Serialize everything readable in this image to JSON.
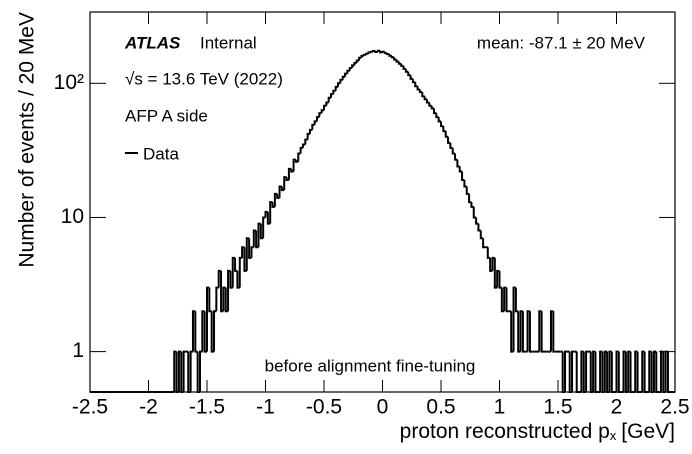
{
  "chart_data": {
    "type": "histogram",
    "experiment": "ATLAS",
    "status": "Internal",
    "energy": "√s = 13.6 TeV (2022)",
    "subtitle": "AFP A side",
    "annotation": "mean: -87.1 ± 20 MeV",
    "note": "before alignment fine-tuning",
    "x_label": {
      "text": "proton reconstructed p",
      "sub": "x",
      "unit": "[GeV]"
    },
    "y_label": "Number of events / 20 MeV",
    "log_y": true,
    "legend": "top-left",
    "xlim": [
      -2.5,
      2.5
    ],
    "ylim": [
      0.5,
      340
    ],
    "xticks": [
      -2.5,
      -2,
      -1.5,
      -1,
      -0.5,
      0,
      0.5,
      1,
      1.5,
      2,
      2.5
    ],
    "yticks": [
      1,
      10,
      {
        "value": 100,
        "label": "10²"
      }
    ],
    "bins": [
      -2.5,
      -2.48,
      -2.46,
      -2.44,
      -2.42,
      -2.4,
      -2.38,
      -2.36,
      -2.34,
      -2.32,
      -2.3,
      -2.28,
      -2.26,
      -2.24,
      -2.22,
      -2.2,
      -2.18,
      -2.16,
      -2.14,
      -2.12,
      -2.1,
      -2.08,
      -2.06,
      -2.04,
      -2.02,
      -2,
      -1.98,
      -1.96,
      -1.94,
      -1.92,
      -1.9,
      -1.88,
      -1.86,
      -1.84,
      -1.82,
      -1.8,
      -1.78,
      -1.76,
      -1.74,
      -1.72,
      -1.7,
      -1.68,
      -1.66,
      -1.64,
      -1.62,
      -1.6,
      -1.58,
      -1.56,
      -1.54,
      -1.52,
      -1.5,
      -1.48,
      -1.46,
      -1.44,
      -1.42,
      -1.4,
      -1.38,
      -1.36,
      -1.34,
      -1.32,
      -1.3,
      -1.28,
      -1.26,
      -1.24,
      -1.22,
      -1.2,
      -1.18,
      -1.16,
      -1.14,
      -1.12,
      -1.1,
      -1.08,
      -1.06,
      -1.04,
      -1.02,
      -1,
      -0.98,
      -0.96,
      -0.94,
      -0.92,
      -0.9,
      -0.88,
      -0.86,
      -0.84,
      -0.82,
      -0.8,
      -0.78,
      -0.76,
      -0.74,
      -0.72,
      -0.7,
      -0.68,
      -0.66,
      -0.64,
      -0.62,
      -0.6,
      -0.58,
      -0.56,
      -0.54,
      -0.52,
      -0.5,
      -0.48,
      -0.46,
      -0.44,
      -0.42,
      -0.4,
      -0.38,
      -0.36,
      -0.34,
      -0.32,
      -0.3,
      -0.28,
      -0.26,
      -0.24,
      -0.22,
      -0.2,
      -0.18,
      -0.16,
      -0.14,
      -0.12,
      -0.1,
      -0.08,
      -0.06,
      -0.04,
      -0.02,
      0,
      0.02,
      0.04,
      0.06,
      0.08,
      0.1,
      0.12,
      0.14,
      0.16,
      0.18,
      0.2,
      0.22,
      0.24,
      0.26,
      0.28,
      0.3,
      0.32,
      0.34,
      0.36,
      0.38,
      0.4,
      0.42,
      0.44,
      0.46,
      0.48,
      0.5,
      0.52,
      0.54,
      0.56,
      0.58,
      0.6,
      0.62,
      0.64,
      0.66,
      0.68,
      0.7,
      0.72,
      0.74,
      0.76,
      0.78,
      0.8,
      0.82,
      0.84,
      0.86,
      0.88,
      0.9,
      0.92,
      0.94,
      0.96,
      0.98,
      1,
      1.02,
      1.04,
      1.06,
      1.08,
      1.1,
      1.12,
      1.14,
      1.16,
      1.18,
      1.2,
      1.22,
      1.24,
      1.26,
      1.28,
      1.3,
      1.32,
      1.34,
      1.36,
      1.38,
      1.4,
      1.42,
      1.44,
      1.46,
      1.48,
      1.5,
      1.52,
      1.54,
      1.56,
      1.58,
      1.6,
      1.62,
      1.64,
      1.66,
      1.68,
      1.7,
      1.72,
      1.74,
      1.76,
      1.78,
      1.8,
      1.82,
      1.84,
      1.86,
      1.88,
      1.9,
      1.92,
      1.94,
      1.96,
      1.98,
      2,
      2.02,
      2.04,
      2.06,
      2.08,
      2.1,
      2.12,
      2.14,
      2.16,
      2.18,
      2.2,
      2.22,
      2.24,
      2.26,
      2.28,
      2.3,
      2.32,
      2.34,
      2.36,
      2.38,
      2.4,
      2.42,
      2.44,
      2.46,
      2.48,
      2.5
    ],
    "series": [
      {
        "name": "Data",
        "color": "#000000",
        "values": [
          0,
          0,
          0,
          0,
          0,
          0,
          0,
          0,
          0,
          0,
          0,
          0,
          0,
          0,
          0,
          0,
          0,
          0,
          0,
          0,
          0,
          0,
          0,
          0,
          0,
          0,
          0,
          0,
          0,
          0,
          0,
          0,
          0,
          0,
          0,
          0,
          1,
          0,
          1,
          0,
          1,
          1,
          0,
          1,
          2,
          1,
          0,
          1,
          2,
          1,
          3,
          2,
          1,
          2,
          3,
          4,
          2,
          3,
          2,
          4,
          3,
          5,
          4,
          3,
          5,
          6,
          4,
          7,
          5,
          6,
          8,
          6,
          9,
          7,
          10,
          11,
          9,
          13,
          12,
          15,
          14,
          17,
          16,
          20,
          19,
          23,
          22,
          27,
          26,
          30,
          33,
          35,
          38,
          42,
          45,
          49,
          52,
          56,
          60,
          63,
          68,
          72,
          78,
          83,
          88,
          94,
          100,
          106,
          112,
          118,
          124,
          130,
          136,
          142,
          148,
          155,
          160,
          163,
          166,
          170,
          172,
          174,
          171,
          175,
          170,
          172,
          168,
          165,
          160,
          156,
          150,
          145,
          140,
          135,
          128,
          122,
          115,
          108,
          102,
          95,
          90,
          86,
          80,
          76,
          72,
          68,
          65,
          60,
          56,
          52,
          48,
          44,
          40,
          36,
          33,
          30,
          27,
          24,
          22,
          19,
          17,
          15,
          13,
          12,
          10,
          9,
          8,
          7,
          6,
          6,
          5,
          4,
          5,
          3,
          4,
          3,
          2,
          3,
          2,
          2,
          1,
          3,
          2,
          1,
          2,
          1,
          1,
          2,
          1,
          1,
          1,
          1,
          2,
          1,
          1,
          1,
          1,
          2,
          1,
          1,
          1,
          1,
          0,
          1,
          1,
          0,
          1,
          1,
          0,
          0,
          1,
          0,
          1,
          1,
          0,
          1,
          0,
          0,
          1,
          0,
          1,
          0,
          1,
          0,
          0,
          1,
          0,
          0,
          1,
          0,
          1,
          0,
          0,
          1,
          0,
          0,
          1,
          0,
          0,
          1,
          0,
          1,
          0,
          0,
          1,
          0,
          1,
          0,
          0,
          0
        ]
      }
    ]
  }
}
